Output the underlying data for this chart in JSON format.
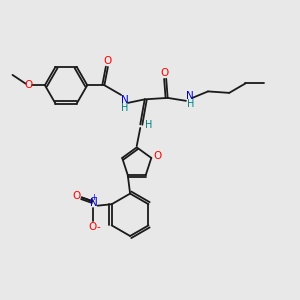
{
  "bg_color": "#e8e8e8",
  "bond_color": "#1a1a1a",
  "oxygen_color": "#ff0000",
  "nitrogen_color": "#0000cc",
  "nh_color": "#008080",
  "figsize": [
    3.0,
    3.0
  ],
  "dpi": 100,
  "xlim": [
    0,
    10
  ],
  "ylim": [
    0,
    10
  ]
}
